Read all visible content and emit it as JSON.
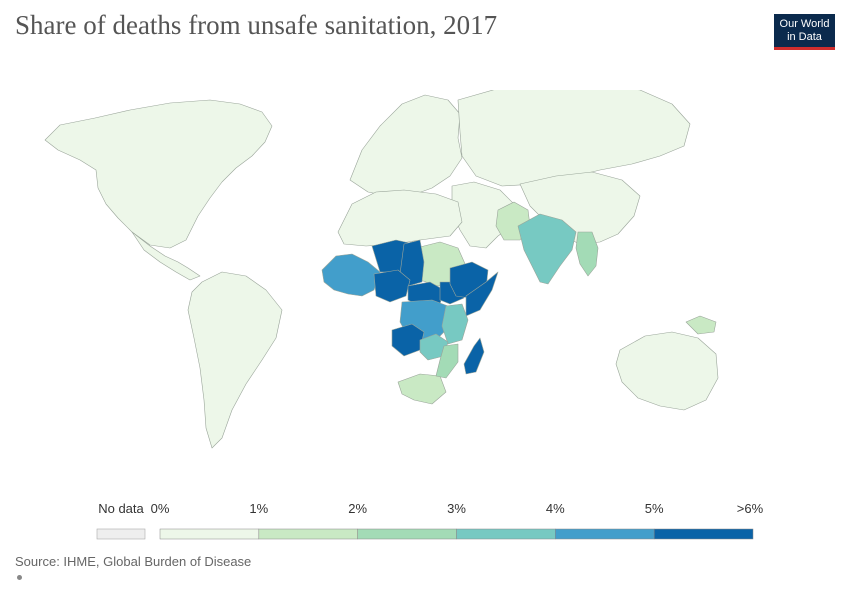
{
  "title": "Share of deaths from unsafe sanitation, 2017",
  "logo": {
    "line1": "Our World",
    "line2": "in Data",
    "bg": "#0b2a4d",
    "accent": "#cf2d2d"
  },
  "legend": {
    "no_data_label": "No data",
    "no_data_color": "#eeeeee",
    "ticks": [
      "0%",
      "1%",
      "2%",
      "3%",
      "4%",
      "5%",
      ">6%"
    ],
    "bins": [
      {
        "range": "0–1%",
        "color": "#edf7e9"
      },
      {
        "range": "1–2%",
        "color": "#c9e9c4"
      },
      {
        "range": "2–3%",
        "color": "#a3dbb6"
      },
      {
        "range": "3–4%",
        "color": "#77c9c2"
      },
      {
        "range": "4–5%",
        "color": "#429ecb"
      },
      {
        "range": "5–6%",
        "color": "#0a63a7"
      }
    ]
  },
  "regions": [
    {
      "name": "North America",
      "bin": 0
    },
    {
      "name": "Central America",
      "bin": 0
    },
    {
      "name": "South America",
      "bin": 0
    },
    {
      "name": "Europe",
      "bin": 0
    },
    {
      "name": "Russia",
      "bin": 0
    },
    {
      "name": "Middle East",
      "bin": 0
    },
    {
      "name": "China",
      "bin": 0
    },
    {
      "name": "Australia",
      "bin": 0
    },
    {
      "name": "North Africa",
      "bin": 0
    },
    {
      "name": "Sudan",
      "bin": 1
    },
    {
      "name": "South Africa",
      "bin": 1
    },
    {
      "name": "Pakistan",
      "bin": 1
    },
    {
      "name": "Papua New Guinea",
      "bin": 1
    },
    {
      "name": "India",
      "bin": 3
    },
    {
      "name": "Myanmar",
      "bin": 2
    },
    {
      "name": "West Africa",
      "bin": 4
    },
    {
      "name": "Niger",
      "bin": 5
    },
    {
      "name": "Chad",
      "bin": 5
    },
    {
      "name": "Nigeria",
      "bin": 5
    },
    {
      "name": "Central African Republic",
      "bin": 5
    },
    {
      "name": "South Sudan",
      "bin": 5
    },
    {
      "name": "Ethiopia",
      "bin": 5
    },
    {
      "name": "Somalia",
      "bin": 5
    },
    {
      "name": "DR Congo",
      "bin": 4
    },
    {
      "name": "Angola",
      "bin": 5
    },
    {
      "name": "Madagascar",
      "bin": 5
    },
    {
      "name": "East Africa",
      "bin": 3
    },
    {
      "name": "Zambia",
      "bin": 3
    },
    {
      "name": "Mozambique",
      "bin": 2
    }
  ],
  "source": "Source: IHME, Global Burden of Disease"
}
